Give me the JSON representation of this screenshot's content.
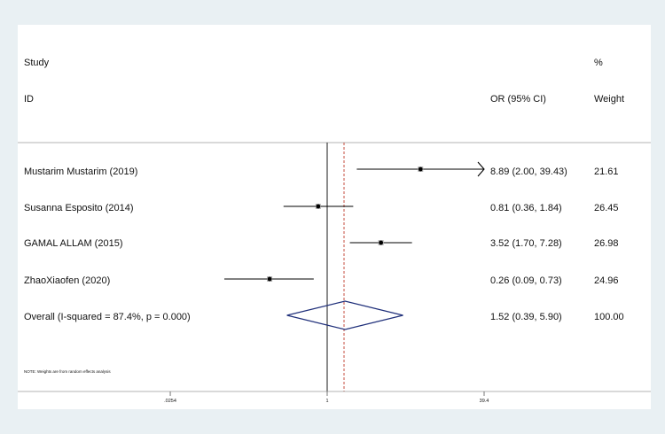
{
  "header": {
    "study_line1": "Study",
    "study_line2": "ID",
    "or_label": "OR (95% CI)",
    "weight_line1": "%",
    "weight_line2": "Weight"
  },
  "note": "NOTE: Weights are from random effects analysis",
  "colors": {
    "background": "#e9f0f3",
    "panel": "#ffffff",
    "diamond": "#1f2f7a",
    "null_line": "#000000",
    "overall_line": "#c0392b"
  },
  "chart_data": {
    "type": "forest",
    "scale": "log",
    "xlim": [
      0.0254,
      39.4
    ],
    "xticks": [
      {
        "value": 0.0254,
        "label": ".0254"
      },
      {
        "value": 1,
        "label": "1"
      },
      {
        "value": 39.4,
        "label": "39.4"
      }
    ],
    "null_value": 1,
    "studies": [
      {
        "label": "Mustarim Mustarim  (2019)",
        "or": 8.89,
        "lo": 2.0,
        "hi": 39.43,
        "ci_text": "8.89 (2.00, 39.43)",
        "weight": "21.61",
        "arrow_right": true
      },
      {
        "label": "Susanna Esposito (2014)",
        "or": 0.81,
        "lo": 0.36,
        "hi": 1.84,
        "ci_text": "0.81 (0.36, 1.84)",
        "weight": "26.45",
        "arrow_right": false
      },
      {
        "label": "GAMAL ALLAM  (2015)",
        "or": 3.52,
        "lo": 1.7,
        "hi": 7.28,
        "ci_text": "3.52 (1.70, 7.28)",
        "weight": "26.98",
        "arrow_right": false
      },
      {
        "label": "ZhaoXiaofen  (2020)",
        "or": 0.26,
        "lo": 0.09,
        "hi": 0.73,
        "ci_text": "0.26 (0.09, 0.73)",
        "weight": "24.96",
        "arrow_right": false
      }
    ],
    "overall": {
      "label": "Overall  (I-squared = 87.4%, p = 0.000)",
      "or": 1.52,
      "lo": 0.39,
      "hi": 5.9,
      "ci_text": "1.52 (0.39, 5.90)",
      "weight": "100.00"
    }
  }
}
